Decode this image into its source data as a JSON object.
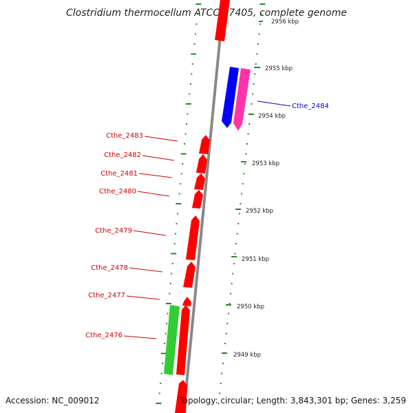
{
  "title": "Clostridium thermocellum ATCC 27405, complete genome",
  "accession": "Accession: NC_009012",
  "topology": "Topology: circular; Length: 3,843,301 bp; Genes: 3,259",
  "colors": {
    "forward_gene": "#ff0000",
    "reverse_gene_1": "#0000ff",
    "reverse_gene_2": "#ff33aa",
    "rna_gene": "#33cc33",
    "backbone": "#888888",
    "tick": "#228822",
    "label_red": "#cc0000",
    "label_blue": "#0000cc"
  },
  "ticks": [
    {
      "label": "2956 kbp"
    },
    {
      "label": "2955 kbp"
    },
    {
      "label": "2954 kbp"
    },
    {
      "label": "2953 kbp"
    },
    {
      "label": "2952 kbp"
    },
    {
      "label": "2951 kbp"
    },
    {
      "label": "2950 kbp"
    },
    {
      "label": "2949 kbp"
    }
  ],
  "gene_labels": [
    {
      "id": "Cthe_2484",
      "color": "blue"
    },
    {
      "id": "Cthe_2483",
      "color": "red"
    },
    {
      "id": "Cthe_2482",
      "color": "red"
    },
    {
      "id": "Cthe_2481",
      "color": "red"
    },
    {
      "id": "Cthe_2480",
      "color": "red"
    },
    {
      "id": "Cthe_2479",
      "color": "red"
    },
    {
      "id": "Cthe_2478",
      "color": "red"
    },
    {
      "id": "Cthe_2477",
      "color": "red"
    },
    {
      "id": "Cthe_2476",
      "color": "red"
    }
  ]
}
